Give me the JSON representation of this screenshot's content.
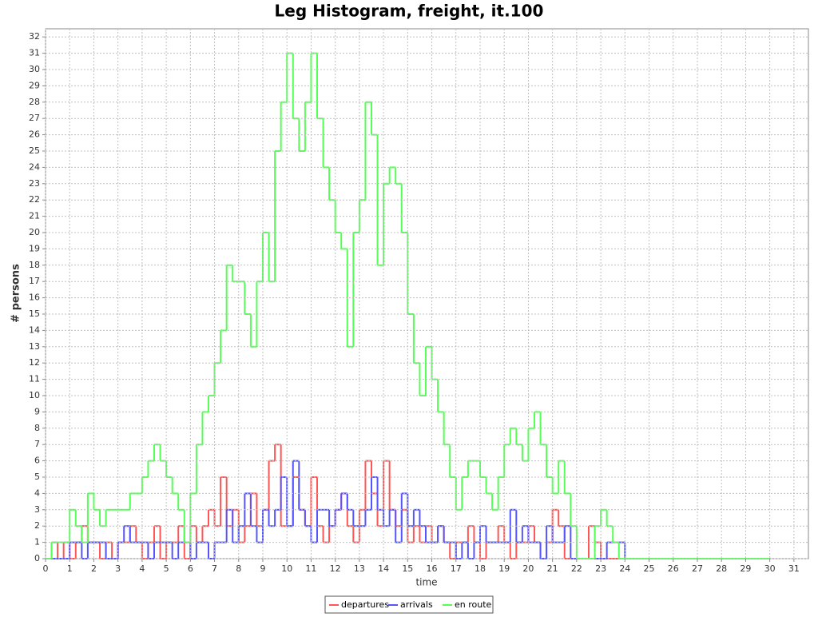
{
  "chart_data": {
    "type": "step",
    "title": "Leg Histogram, freight, it.100",
    "x_label": "time",
    "y_label": "# persons",
    "x": [
      0,
      0.25,
      0.5,
      0.75,
      1,
      1.25,
      1.5,
      1.75,
      2,
      2.25,
      2.5,
      2.75,
      3,
      3.25,
      3.5,
      3.75,
      4,
      4.25,
      4.5,
      4.75,
      5,
      5.25,
      5.5,
      5.75,
      6,
      6.25,
      6.5,
      6.75,
      7,
      7.25,
      7.5,
      7.75,
      8,
      8.25,
      8.5,
      8.75,
      9,
      9.25,
      9.5,
      9.75,
      10,
      10.25,
      10.5,
      10.75,
      11,
      11.25,
      11.5,
      11.75,
      12,
      12.25,
      12.5,
      12.75,
      13,
      13.25,
      13.5,
      13.75,
      14,
      14.25,
      14.5,
      14.75,
      15,
      15.25,
      15.5,
      15.75,
      16,
      16.25,
      16.5,
      16.75,
      17,
      17.25,
      17.5,
      17.75,
      18,
      18.25,
      18.5,
      18.75,
      19,
      19.25,
      19.5,
      19.75,
      20,
      20.25,
      20.5,
      20.75,
      21,
      21.25,
      21.5,
      21.75,
      22,
      22.25,
      22.5,
      22.75,
      23,
      23.25,
      23.5,
      23.75,
      24,
      30
    ],
    "series": [
      {
        "name": "departures",
        "color": "#ff5555",
        "values": [
          0,
          1,
          0,
          1,
          0,
          1,
          2,
          1,
          1,
          0,
          1,
          0,
          1,
          1,
          2,
          1,
          0,
          1,
          2,
          0,
          1,
          1,
          2,
          0,
          2,
          1,
          2,
          3,
          2,
          5,
          2,
          3,
          1,
          2,
          4,
          2,
          3,
          6,
          7,
          2,
          2,
          5,
          3,
          2,
          5,
          2,
          1,
          2,
          3,
          4,
          2,
          1,
          3,
          6,
          4,
          2,
          6,
          3,
          2,
          3,
          1,
          2,
          1,
          2,
          1,
          2,
          1,
          0,
          1,
          1,
          2,
          1,
          0,
          1,
          1,
          2,
          1,
          0,
          1,
          1,
          2,
          1,
          0,
          1,
          3,
          2,
          0,
          0,
          0,
          0,
          2,
          1,
          0,
          0,
          0,
          0,
          0,
          0
        ]
      },
      {
        "name": "arrivals",
        "color": "#5555ff",
        "values": [
          0,
          0,
          0,
          0,
          1,
          1,
          0,
          1,
          1,
          1,
          0,
          0,
          1,
          2,
          1,
          1,
          1,
          0,
          1,
          1,
          1,
          0,
          1,
          1,
          0,
          1,
          1,
          0,
          1,
          1,
          3,
          1,
          2,
          4,
          2,
          1,
          3,
          2,
          3,
          5,
          2,
          6,
          3,
          2,
          1,
          3,
          3,
          2,
          3,
          4,
          3,
          2,
          2,
          3,
          5,
          3,
          2,
          3,
          1,
          4,
          2,
          3,
          2,
          1,
          1,
          2,
          1,
          1,
          0,
          1,
          0,
          1,
          2,
          1,
          1,
          1,
          1,
          3,
          1,
          2,
          1,
          1,
          0,
          2,
          1,
          1,
          2,
          0,
          0,
          0,
          0,
          0,
          0,
          1,
          1,
          1,
          0,
          0
        ]
      },
      {
        "name": "en route",
        "color": "#55ff55",
        "values": [
          0,
          1,
          1,
          1,
          3,
          2,
          1,
          4,
          3,
          2,
          3,
          3,
          3,
          3,
          4,
          4,
          5,
          6,
          7,
          6,
          5,
          4,
          3,
          1,
          4,
          7,
          9,
          10,
          12,
          14,
          18,
          17,
          17,
          15,
          13,
          17,
          20,
          17,
          25,
          28,
          31,
          27,
          25,
          28,
          31,
          27,
          24,
          22,
          20,
          19,
          13,
          20,
          22,
          28,
          26,
          18,
          23,
          24,
          23,
          20,
          15,
          12,
          10,
          13,
          11,
          9,
          7,
          5,
          3,
          5,
          6,
          6,
          5,
          4,
          3,
          5,
          7,
          8,
          7,
          6,
          8,
          9,
          7,
          5,
          4,
          6,
          4,
          2,
          0,
          0,
          0,
          2,
          3,
          2,
          1,
          0,
          0,
          0
        ]
      }
    ],
    "xlim": [
      0,
      31.6
    ],
    "ylim": [
      0,
      32.5
    ],
    "xticks": [
      0,
      1,
      2,
      3,
      4,
      5,
      6,
      7,
      8,
      9,
      10,
      11,
      12,
      13,
      14,
      15,
      16,
      17,
      18,
      19,
      20,
      21,
      22,
      23,
      24,
      25,
      26,
      27,
      28,
      29,
      30,
      31
    ],
    "yticks": [
      0,
      1,
      2,
      3,
      4,
      5,
      6,
      7,
      8,
      9,
      10,
      11,
      12,
      13,
      14,
      15,
      16,
      17,
      18,
      19,
      20,
      21,
      22,
      23,
      24,
      25,
      26,
      27,
      28,
      29,
      30,
      31,
      32
    ],
    "grid": true,
    "legend": "bottom"
  }
}
